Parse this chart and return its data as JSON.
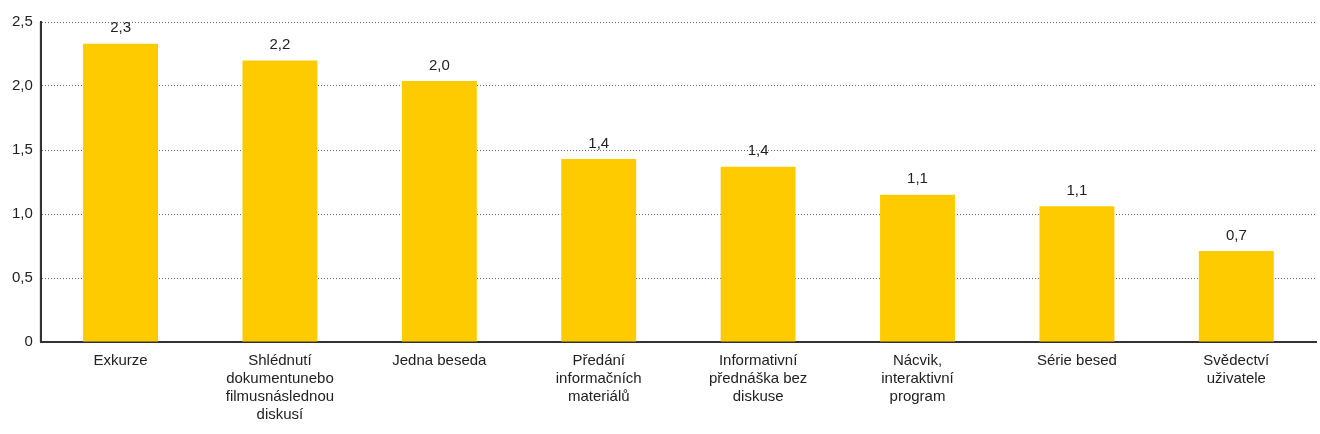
{
  "chart_data": {
    "type": "bar",
    "categories": [
      "Exkurze",
      "Shlédnutí dokumentunebo filmusnáslednou diskusí",
      "Jedna beseda",
      "Předání informačních materiálů",
      "Informativní přednáška bez diskuse",
      "Nácvik, interaktivní program",
      "Série besed",
      "Svědectví uživatele"
    ],
    "values": [
      2.33,
      2.2,
      2.04,
      1.43,
      1.37,
      1.15,
      1.06,
      0.71
    ],
    "value_labels": [
      "2,3",
      "2,2",
      "2,0",
      "1,4",
      "1,4",
      "1,1",
      "1,1",
      "0,7"
    ],
    "color": "#fecb00",
    "ylim": [
      0,
      2.5
    ],
    "yticks": [
      0,
      {
        "value": 0.5,
        "label": "0,5"
      },
      {
        "value": 1,
        "label": "1,0"
      },
      {
        "value": 1.5,
        "label": "1,5"
      },
      {
        "value": 2,
        "label": "2,0"
      },
      {
        "value": 2.5,
        "label": "2,5"
      }
    ],
    "grid": "y"
  }
}
